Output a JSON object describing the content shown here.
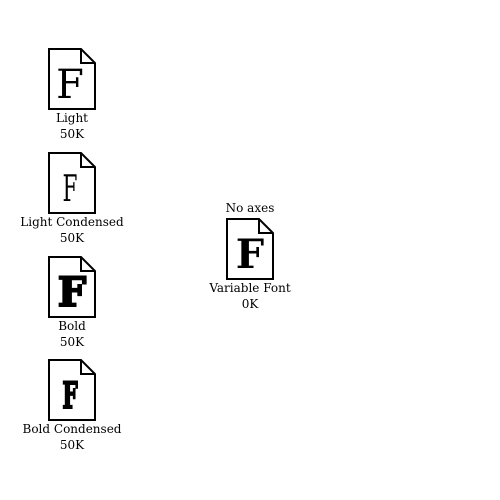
{
  "files": [
    {
      "name": "Light",
      "size": "50K",
      "glyph": "F",
      "icon": "font-file-icon"
    },
    {
      "name": "Light Condensed",
      "size": "50K",
      "glyph": "F",
      "icon": "font-file-icon"
    },
    {
      "name": "Bold",
      "size": "50K",
      "glyph": "F",
      "icon": "font-file-icon"
    },
    {
      "name": "Bold Condensed",
      "size": "50K",
      "glyph": "F",
      "icon": "font-file-icon"
    }
  ],
  "variable": {
    "caption": "No axes",
    "name": "Variable Font",
    "size": "0K",
    "glyph": "F",
    "icon": "font-file-icon"
  }
}
